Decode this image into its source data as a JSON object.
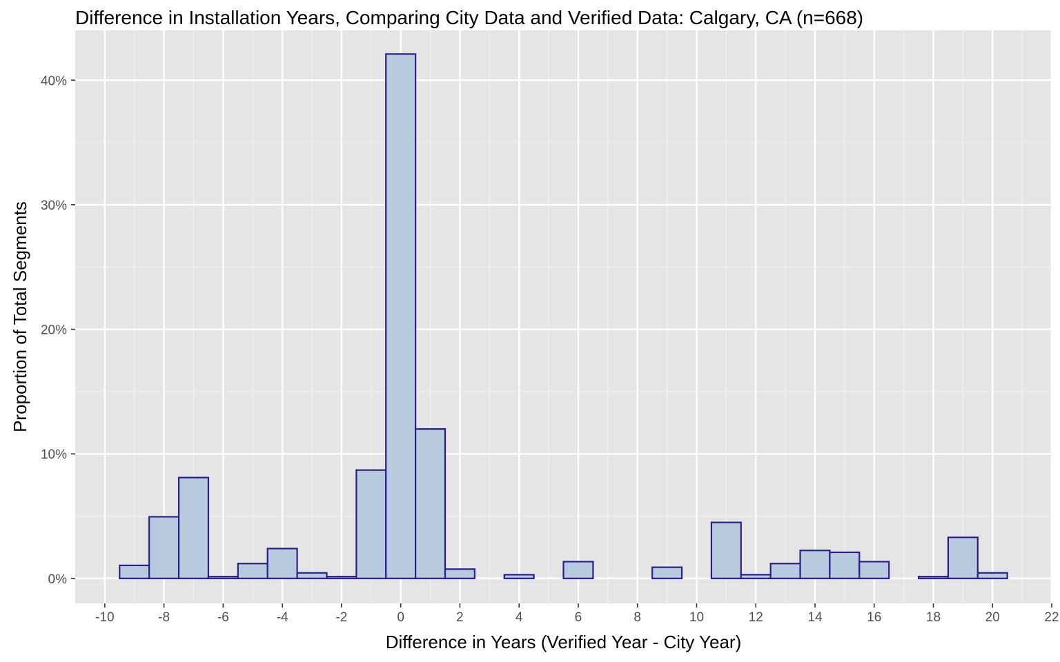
{
  "chart_data": {
    "type": "bar",
    "title": "Difference in Installation Years, Comparing City Data and Verified Data: Calgary, CA (n=668)",
    "xlabel": "Difference in Years (Verified Year - City Year)",
    "ylabel": "Proportion of Total Segments",
    "xlim": [
      -11,
      22
    ],
    "ylim": [
      -2,
      44
    ],
    "x_ticks": [
      -10,
      -8,
      -6,
      -4,
      -2,
      0,
      2,
      4,
      6,
      8,
      10,
      12,
      14,
      16,
      18,
      20,
      22
    ],
    "y_ticks": [
      0,
      10,
      20,
      30,
      40
    ],
    "y_tick_labels": [
      "0%",
      "10%",
      "20%",
      "30%",
      "40%"
    ],
    "bin_width": 1,
    "grid": true,
    "fill_color": "#b8cadd",
    "outline_color": "#2a1f8a",
    "panel_color": "#e5e5e5",
    "bins": [
      {
        "x": -9,
        "value": 1.05
      },
      {
        "x": -8,
        "value": 4.95
      },
      {
        "x": -7,
        "value": 8.1
      },
      {
        "x": -6,
        "value": 0.15
      },
      {
        "x": -5,
        "value": 1.2
      },
      {
        "x": -4,
        "value": 2.4
      },
      {
        "x": -3,
        "value": 0.45
      },
      {
        "x": -2,
        "value": 0.15
      },
      {
        "x": -1,
        "value": 8.7
      },
      {
        "x": 0,
        "value": 42.1
      },
      {
        "x": 1,
        "value": 12.0
      },
      {
        "x": 2,
        "value": 0.75
      },
      {
        "x": 4,
        "value": 0.3
      },
      {
        "x": 6,
        "value": 1.35
      },
      {
        "x": 9,
        "value": 0.9
      },
      {
        "x": 11,
        "value": 4.5
      },
      {
        "x": 12,
        "value": 0.3
      },
      {
        "x": 13,
        "value": 1.2
      },
      {
        "x": 14,
        "value": 2.25
      },
      {
        "x": 15,
        "value": 2.1
      },
      {
        "x": 16,
        "value": 1.35
      },
      {
        "x": 18,
        "value": 0.15
      },
      {
        "x": 19,
        "value": 3.3
      },
      {
        "x": 20,
        "value": 0.45
      }
    ]
  }
}
